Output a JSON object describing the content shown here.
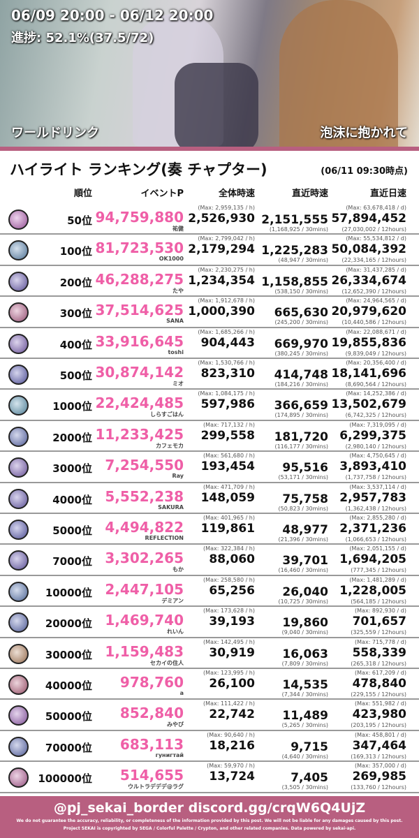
{
  "banner": {
    "period": "06/09 20:00 - 06/12 20:00",
    "progress": "進捗: 52.1%(37.5/72)",
    "unit": "ワールドリンク",
    "song": "泡沫に抱かれて"
  },
  "title": "ハイライト ランキング(奏 チャプター)",
  "as_of": "(06/11 09:30時点)",
  "columns": [
    "順位",
    "イベントP",
    "全体時速",
    "直近時速",
    "直近日速"
  ],
  "accent_color": "#b85f80",
  "points_color": "#ef5fa7",
  "rows": [
    {
      "rank": "50位",
      "points": "94,759,880",
      "name": "祐健",
      "hour_max": "(Max: 2,959,135 / h)",
      "hour": "2,526,930",
      "recent": "2,151,555",
      "recent_sub": "(1,168,925 / 30mins)",
      "day_max": "(Max: 63,678,418 / d)",
      "day": "57,894,452",
      "day_sub": "(27,030,002 / 12hours)"
    },
    {
      "rank": "100位",
      "points": "81,723,530",
      "name": "OK1000",
      "hour_max": "(Max: 2,799,042 / h)",
      "hour": "2,179,294",
      "recent": "1,225,283",
      "recent_sub": "(48,947 / 30mins)",
      "day_max": "(Max: 55,534,812 / d)",
      "day": "50,084,392",
      "day_sub": "(22,334,165 / 12hours)"
    },
    {
      "rank": "200位",
      "points": "46,288,275",
      "name": "たや",
      "hour_max": "(Max: 2,230,275 / h)",
      "hour": "1,234,354",
      "recent": "1,158,855",
      "recent_sub": "(538,150 / 30mins)",
      "day_max": "(Max: 31,437,285 / d)",
      "day": "26,334,674",
      "day_sub": "(12,652,390 / 12hours)"
    },
    {
      "rank": "300位",
      "points": "37,514,625",
      "name": "SANA",
      "hour_max": "(Max: 1,912,678 / h)",
      "hour": "1,000,390",
      "recent": "665,630",
      "recent_sub": "(245,200 / 30mins)",
      "day_max": "(Max: 24,964,565 / d)",
      "day": "20,979,620",
      "day_sub": "(10,440,586 / 12hours)"
    },
    {
      "rank": "400位",
      "points": "33,916,645",
      "name": "toshi",
      "hour_max": "(Max: 1,685,266 / h)",
      "hour": "904,443",
      "recent": "669,970",
      "recent_sub": "(380,245 / 30mins)",
      "day_max": "(Max: 22,088,671 / d)",
      "day": "19,855,836",
      "day_sub": "(9,839,049 / 12hours)"
    },
    {
      "rank": "500位",
      "points": "30,874,142",
      "name": "ミオ",
      "hour_max": "(Max: 1,530,766 / h)",
      "hour": "823,310",
      "recent": "414,748",
      "recent_sub": "(184,216 / 30mins)",
      "day_max": "(Max: 20,356,400 / d)",
      "day": "18,141,696",
      "day_sub": "(8,690,564 / 12hours)"
    },
    {
      "rank": "1000位",
      "points": "22,424,485",
      "name": "しらすごはん",
      "hour_max": "(Max: 1,084,175 / h)",
      "hour": "597,986",
      "recent": "366,659",
      "recent_sub": "(174,895 / 30mins)",
      "day_max": "(Max: 14,252,386 / d)",
      "day": "13,502,679",
      "day_sub": "(6,742,325 / 12hours)"
    },
    {
      "rank": "2000位",
      "points": "11,233,425",
      "name": "カフェモカ",
      "hour_max": "(Max: 717,132 / h)",
      "hour": "299,558",
      "recent": "181,720",
      "recent_sub": "(116,177 / 30mins)",
      "day_max": "(Max: 7,319,095 / d)",
      "day": "6,299,375",
      "day_sub": "(2,980,140 / 12hours)"
    },
    {
      "rank": "3000位",
      "points": "7,254,550",
      "name": "Ray",
      "hour_max": "(Max: 561,680 / h)",
      "hour": "193,454",
      "recent": "95,516",
      "recent_sub": "(53,171 / 30mins)",
      "day_max": "(Max: 4,750,645 / d)",
      "day": "3,893,410",
      "day_sub": "(1,737,758 / 12hours)"
    },
    {
      "rank": "4000位",
      "points": "5,552,238",
      "name": "SAKURA",
      "hour_max": "(Max: 471,709 / h)",
      "hour": "148,059",
      "recent": "75,758",
      "recent_sub": "(50,823 / 30mins)",
      "day_max": "(Max: 3,537,114 / d)",
      "day": "2,957,783",
      "day_sub": "(1,362,438 / 12hours)"
    },
    {
      "rank": "5000位",
      "points": "4,494,822",
      "name": "REFLECTION",
      "hour_max": "(Max: 401,965 / h)",
      "hour": "119,861",
      "recent": "48,977",
      "recent_sub": "(21,396 / 30mins)",
      "day_max": "(Max: 2,855,280 / d)",
      "day": "2,371,236",
      "day_sub": "(1,066,653 / 12hours)"
    },
    {
      "rank": "7000位",
      "points": "3,302,265",
      "name": "もか",
      "hour_max": "(Max: 322,384 / h)",
      "hour": "88,060",
      "recent": "39,701",
      "recent_sub": "(16,460 / 30mins)",
      "day_max": "(Max: 2,051,155 / d)",
      "day": "1,694,205",
      "day_sub": "(777,345 / 12hours)"
    },
    {
      "rank": "10000位",
      "points": "2,447,105",
      "name": "デミアン",
      "hour_max": "(Max: 258,580 / h)",
      "hour": "65,256",
      "recent": "26,040",
      "recent_sub": "(10,725 / 30mins)",
      "day_max": "(Max: 1,481,289 / d)",
      "day": "1,228,005",
      "day_sub": "(564,185 / 12hours)"
    },
    {
      "rank": "20000位",
      "points": "1,469,740",
      "name": "れいん",
      "hour_max": "(Max: 173,628 / h)",
      "hour": "39,193",
      "recent": "19,860",
      "recent_sub": "(9,040 / 30mins)",
      "day_max": "(Max: 892,930 / d)",
      "day": "701,657",
      "day_sub": "(325,559 / 12hours)"
    },
    {
      "rank": "30000位",
      "points": "1,159,483",
      "name": "セカイの住人",
      "hour_max": "(Max: 142,495 / h)",
      "hour": "30,919",
      "recent": "16,063",
      "recent_sub": "(7,809 / 30mins)",
      "day_max": "(Max: 715,778 / d)",
      "day": "558,339",
      "day_sub": "(265,318 / 12hours)"
    },
    {
      "rank": "40000位",
      "points": "978,760",
      "name": "a",
      "hour_max": "(Max: 123,995 / h)",
      "hour": "26,100",
      "recent": "14,535",
      "recent_sub": "(7,344 / 30mins)",
      "day_max": "(Max: 617,209 / d)",
      "day": "478,840",
      "day_sub": "(229,155 / 12hours)"
    },
    {
      "rank": "50000位",
      "points": "852,840",
      "name": "みやび",
      "hour_max": "(Max: 111,422 / h)",
      "hour": "22,742",
      "recent": "11,489",
      "recent_sub": "(5,265 / 30mins)",
      "day_max": "(Max: 551,982 / d)",
      "day": "423,980",
      "day_sub": "(203,195 / 12hours)"
    },
    {
      "rank": "70000位",
      "points": "683,113",
      "name": "гунигтай",
      "hour_max": "(Max: 90,640 / h)",
      "hour": "18,216",
      "recent": "9,715",
      "recent_sub": "(4,640 / 30mins)",
      "day_max": "(Max: 458,801 / d)",
      "day": "347,464",
      "day_sub": "(169,313 / 12hours)"
    },
    {
      "rank": "100000位",
      "points": "514,655",
      "name": "ウルトラデデデ@ラグ",
      "hour_max": "(Max: 59,970 / h)",
      "hour": "13,724",
      "recent": "7,405",
      "recent_sub": "(3,505 / 30mins)",
      "day_max": "(Max: 357,000 / d)",
      "day": "269,985",
      "day_sub": "(133,760 / 12hours)"
    }
  ],
  "footer": {
    "handle": "@pj_sekai_border  discord.gg/crqW6Q4UjZ",
    "disclaimer": "We do not guarantee the accuracy, reliability, or completeness of the information provided by this post. We will not be liable for any damages caused by this post.",
    "copyright": "Project SEKAI is copyrighted by SEGA / Colorful Palette / Crypton, and other related companies. Data powered by sekai-api."
  }
}
